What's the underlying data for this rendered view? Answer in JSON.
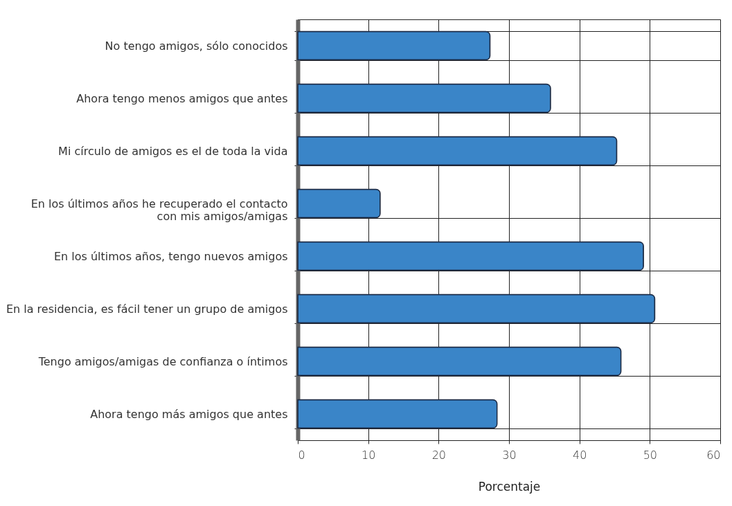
{
  "chart_data": {
    "type": "bar",
    "orientation": "horizontal",
    "xlabel": "Porcentaje",
    "categories": [
      "No tengo amigos, sólo conocidos",
      "Ahora tengo menos amigos que antes",
      "Mi círculo de amigos es el de toda la vida",
      "En los últimos años he recuperado el contacto\ncon mis amigos/amigas",
      "En los últimos años, tengo nuevos amigos",
      "En la residencia, es fácil tener un grupo de amigos",
      "Tengo amigos/amigas de confianza o íntimos",
      "Ahora tengo más amigos que antes"
    ],
    "values": [
      27.3,
      35.9,
      45.3,
      11.7,
      49.1,
      50.7,
      45.9,
      28.3
    ],
    "color": "#3a85c8",
    "xlim": [
      0,
      60
    ],
    "xticks": [
      0,
      10,
      20,
      30,
      40,
      50,
      60
    ],
    "grid": true
  }
}
